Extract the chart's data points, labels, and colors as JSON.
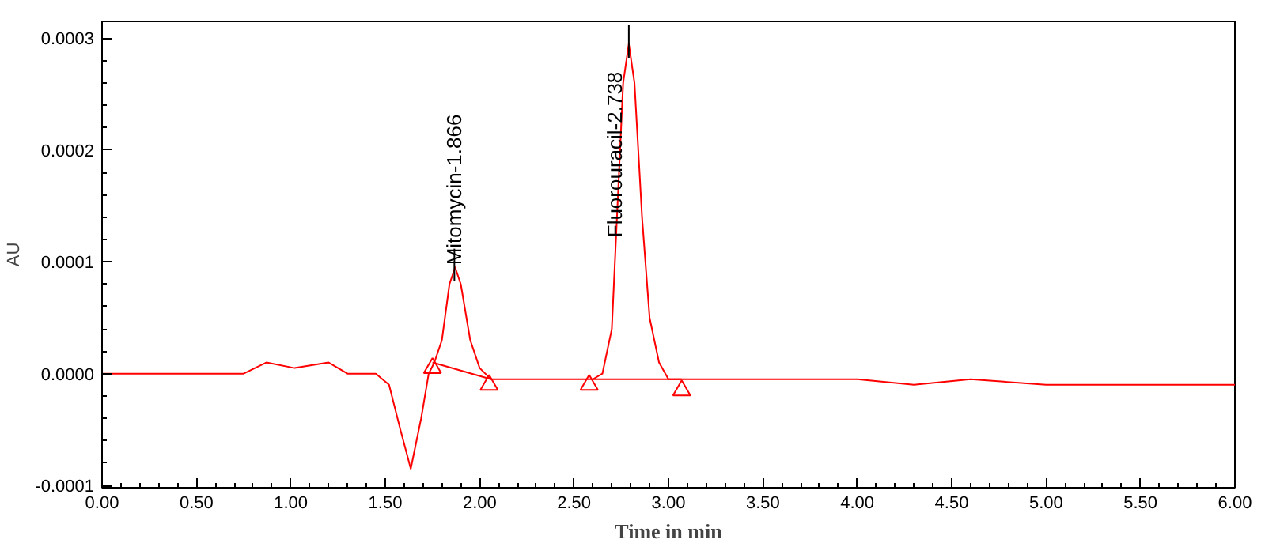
{
  "chart_data": {
    "type": "line",
    "xlabel": "Time in min",
    "ylabel": "AU",
    "xlim": [
      0,
      6
    ],
    "ylim": [
      -0.000102,
      0.000315
    ],
    "xticks": [
      {
        "value": 0,
        "label": "0.00"
      },
      {
        "value": 0.5,
        "label": "0.50"
      },
      {
        "value": 1,
        "label": "1.00"
      },
      {
        "value": 1.5,
        "label": "1.50"
      },
      {
        "value": 2,
        "label": "2.00"
      },
      {
        "value": 2.5,
        "label": "2.50"
      },
      {
        "value": 3,
        "label": "3.00"
      },
      {
        "value": 3.5,
        "label": "3.50"
      },
      {
        "value": 4,
        "label": "4.00"
      },
      {
        "value": 4.5,
        "label": "4.50"
      },
      {
        "value": 5,
        "label": "5.00"
      },
      {
        "value": 5.5,
        "label": "5.50"
      },
      {
        "value": 6,
        "label": "6.00"
      }
    ],
    "yticks": [
      {
        "value": -0.0001,
        "label": "-0.0001"
      },
      {
        "value": 0,
        "label": "0.0000"
      },
      {
        "value": 0.0001,
        "label": "0.0001"
      },
      {
        "value": 0.0002,
        "label": "0.0002"
      },
      {
        "value": 0.0003,
        "label": "0.0003"
      }
    ],
    "marker": "none",
    "line_style": "solid",
    "x": [
      0,
      0.3,
      0.45,
      0.75,
      0.87,
      1.02,
      1.2,
      1.3,
      1.45,
      1.52,
      1.58,
      1.635,
      1.69,
      1.73,
      1.76,
      1.8,
      1.84,
      1.87,
      1.9,
      1.95,
      2.0,
      2.06,
      2.15,
      2.3,
      2.6,
      2.65,
      2.7,
      2.73,
      2.76,
      2.79,
      2.82,
      2.86,
      2.9,
      2.95,
      3.0,
      3.07,
      3.4,
      3.6,
      4.0,
      4.3,
      4.6,
      5.0,
      5.5,
      6.0
    ],
    "series": [
      {
        "color": "#ff0000",
        "values": [
          0,
          0,
          0,
          0,
          1e-05,
          5e-06,
          1e-05,
          0,
          0,
          -1e-05,
          -5e-05,
          -8.5e-05,
          -4e-05,
          0,
          1e-05,
          3e-05,
          8e-05,
          9.5e-05,
          8e-05,
          3e-05,
          5e-06,
          -5e-06,
          -5e-06,
          -5e-06,
          -5e-06,
          0,
          4e-05,
          0.00015,
          0.00026,
          0.000295,
          0.00026,
          0.00014,
          5e-05,
          1e-05,
          -5e-06,
          -5e-06,
          -5e-06,
          -5e-06,
          -5e-06,
          -1e-05,
          -5e-06,
          -1e-05,
          -1e-05,
          -1e-05
        ]
      },
      {
        "color": "#ff0000",
        "x": [
          1.75,
          2.06
        ],
        "values": [
          1e-05,
          -5e-06
        ]
      },
      {
        "color": "#ff0000",
        "x": [
          2.6,
          3.07
        ],
        "values": [
          -5e-06,
          -5e-06
        ]
      },
      {
        "type": "scatter",
        "marker": "triangle",
        "color": "#ff0000",
        "x": [
          1.75,
          2.05,
          2.58,
          3.07
        ],
        "values": [
          5e-06,
          -1e-05,
          -1e-05,
          -1.5e-05
        ]
      }
    ],
    "annotations": [
      {
        "text": "Mitomycin-1.866",
        "x": 1.866,
        "y": 9.5e-05
      },
      {
        "text": "Fluorouracil-2.738",
        "x": 2.79,
        "y": 0.000295
      }
    ]
  }
}
